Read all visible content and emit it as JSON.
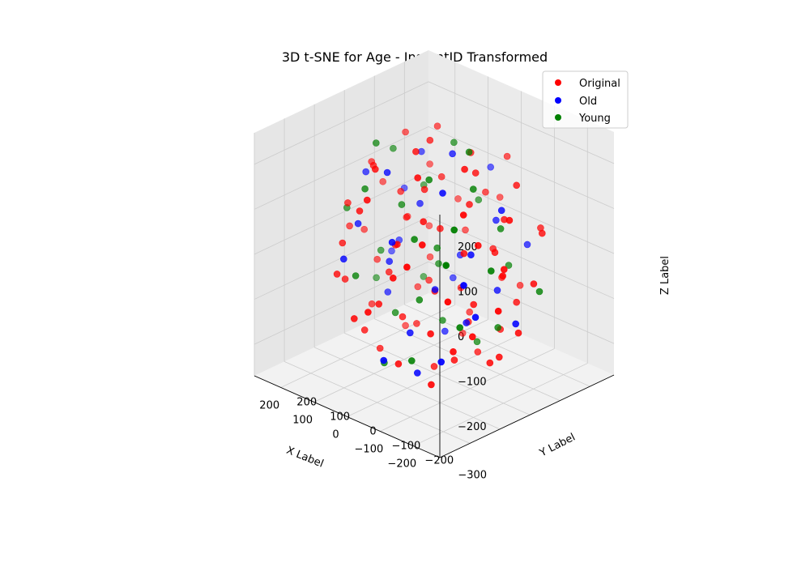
{
  "chart_data": {
    "type": "scatter",
    "projection": "3d",
    "title": "3D t-SNE for Age - InstantID Transformed",
    "xlabel": "X Label",
    "ylabel": "Y Label",
    "zlabel": "Z Label",
    "xlim": [
      -280,
      280
    ],
    "ylim": [
      -300,
      280
    ],
    "zlim": [
      -270,
      270
    ],
    "x_ticks": [
      200,
      100,
      0,
      -100,
      -200
    ],
    "x_tick_labels": [
      "200",
      "100",
      "0",
      "−100",
      "−200"
    ],
    "y_ticks": [
      200,
      100,
      0,
      -100,
      -200,
      -300
    ],
    "y_tick_labels": [
      "200",
      "100",
      "0",
      "−100",
      "−200",
      "−300"
    ],
    "z_ticks": [
      -200,
      -100,
      0,
      100,
      200
    ],
    "z_tick_labels": [
      "−200",
      "−100",
      "0",
      "100",
      "200"
    ],
    "grid": true,
    "legend": {
      "position": "top-right",
      "entries": [
        "Original",
        "Old",
        "Young"
      ]
    },
    "series": [
      {
        "name": "Original",
        "color": "#ff0000",
        "points": [
          [
            180,
            -20,
            150
          ],
          [
            150,
            60,
            200
          ],
          [
            120,
            -80,
            180
          ],
          [
            90,
            100,
            220
          ],
          [
            60,
            -140,
            210
          ],
          [
            40,
            20,
            230
          ],
          [
            10,
            -60,
            240
          ],
          [
            -20,
            90,
            200
          ],
          [
            -50,
            -120,
            220
          ],
          [
            -80,
            40,
            190
          ],
          [
            -110,
            -30,
            230
          ],
          [
            -140,
            110,
            160
          ],
          [
            -170,
            -100,
            170
          ],
          [
            -200,
            20,
            130
          ],
          [
            200,
            40,
            80
          ],
          [
            170,
            -110,
            90
          ],
          [
            140,
            130,
            110
          ],
          [
            110,
            0,
            100
          ],
          [
            80,
            -170,
            120
          ],
          [
            50,
            70,
            130
          ],
          [
            20,
            -20,
            140
          ],
          [
            -10,
            150,
            90
          ],
          [
            -40,
            -90,
            110
          ],
          [
            -70,
            30,
            120
          ],
          [
            -100,
            -160,
            100
          ],
          [
            -130,
            80,
            90
          ],
          [
            -160,
            -40,
            80
          ],
          [
            -190,
            140,
            60
          ],
          [
            -220,
            -20,
            40
          ],
          [
            210,
            -60,
            10
          ],
          [
            180,
            100,
            -10
          ],
          [
            150,
            -150,
            20
          ],
          [
            120,
            30,
            30
          ],
          [
            90,
            -40,
            0
          ],
          [
            60,
            160,
            -20
          ],
          [
            30,
            -100,
            40
          ],
          [
            0,
            10,
            50
          ],
          [
            -30,
            -180,
            10
          ],
          [
            -60,
            120,
            -10
          ],
          [
            -90,
            -10,
            30
          ],
          [
            -120,
            60,
            20
          ],
          [
            -150,
            -130,
            -20
          ],
          [
            -180,
            20,
            0
          ],
          [
            -210,
            90,
            -30
          ],
          [
            190,
            10,
            -80
          ],
          [
            160,
            -130,
            -70
          ],
          [
            130,
            120,
            -90
          ],
          [
            100,
            -50,
            -60
          ],
          [
            70,
            50,
            -100
          ],
          [
            40,
            -150,
            -80
          ],
          [
            10,
            90,
            -110
          ],
          [
            -20,
            -30,
            -70
          ],
          [
            -50,
            160,
            -90
          ],
          [
            -80,
            -110,
            -120
          ],
          [
            -110,
            0,
            -80
          ],
          [
            -140,
            110,
            -100
          ],
          [
            -170,
            -70,
            -110
          ],
          [
            -200,
            50,
            -130
          ],
          [
            170,
            -30,
            -160
          ],
          [
            140,
            90,
            -150
          ],
          [
            110,
            -120,
            -170
          ],
          [
            80,
            20,
            -190
          ],
          [
            50,
            -60,
            -140
          ],
          [
            20,
            130,
            -180
          ],
          [
            -10,
            -140,
            -200
          ],
          [
            -40,
            60,
            -160
          ],
          [
            -70,
            -20,
            -210
          ],
          [
            -100,
            100,
            -170
          ],
          [
            -130,
            -90,
            -150
          ],
          [
            -160,
            30,
            -190
          ],
          [
            150,
            60,
            -230
          ],
          [
            100,
            -80,
            -220
          ],
          [
            50,
            140,
            -240
          ],
          [
            0,
            -10,
            -250
          ],
          [
            -50,
            80,
            -230
          ],
          [
            -100,
            -130,
            -220
          ],
          [
            -150,
            10,
            -200
          ],
          [
            30,
            -200,
            170
          ],
          [
            -30,
            200,
            160
          ],
          [
            220,
            0,
            -20
          ],
          [
            -230,
            -50,
            -40
          ],
          [
            100,
            180,
            30
          ],
          [
            -90,
            -200,
            60
          ],
          [
            60,
            -210,
            -100
          ],
          [
            -60,
            210,
            -120
          ],
          [
            130,
            -190,
            -30
          ],
          [
            -140,
            190,
            40
          ],
          [
            0,
            -230,
            -60
          ],
          [
            10,
            220,
            50
          ],
          [
            160,
            150,
            -40
          ]
        ]
      },
      {
        "name": "Old",
        "color": "#0000ff",
        "points": [
          [
            170,
            -50,
            140
          ],
          [
            120,
            80,
            160
          ],
          [
            60,
            -100,
            190
          ],
          [
            -10,
            40,
            210
          ],
          [
            -80,
            -70,
            180
          ],
          [
            -140,
            60,
            120
          ],
          [
            190,
            100,
            50
          ],
          [
            130,
            -120,
            60
          ],
          [
            70,
            20,
            80
          ],
          [
            0,
            -150,
            70
          ],
          [
            -60,
            130,
            50
          ],
          [
            -120,
            -20,
            40
          ],
          [
            -180,
            -110,
            20
          ],
          [
            160,
            50,
            -40
          ],
          [
            90,
            -60,
            -30
          ],
          [
            30,
            110,
            -50
          ],
          [
            -30,
            -40,
            -60
          ],
          [
            -100,
            90,
            -80
          ],
          [
            -170,
            -60,
            -70
          ],
          [
            140,
            -10,
            -130
          ],
          [
            70,
            130,
            -120
          ],
          [
            0,
            -90,
            -150
          ],
          [
            -70,
            20,
            -140
          ],
          [
            -130,
            -130,
            -160
          ],
          [
            40,
            70,
            -210
          ],
          [
            -40,
            -110,
            -220
          ],
          [
            210,
            80,
            -90
          ],
          [
            -210,
            30,
            -100
          ],
          [
            110,
            -190,
            10
          ],
          [
            -100,
            190,
            -10
          ],
          [
            20,
            200,
            120
          ],
          [
            -20,
            -200,
            -170
          ]
        ]
      },
      {
        "name": "Young",
        "color": "#008000",
        "points": [
          [
            160,
            30,
            170
          ],
          [
            100,
            -130,
            150
          ],
          [
            40,
            100,
            200
          ],
          [
            -30,
            -60,
            190
          ],
          [
            -100,
            10,
            170
          ],
          [
            -160,
            -120,
            140
          ],
          [
            200,
            -80,
            60
          ],
          [
            140,
            110,
            70
          ],
          [
            80,
            -30,
            90
          ],
          [
            20,
            160,
            60
          ],
          [
            -40,
            -120,
            80
          ],
          [
            -110,
            90,
            60
          ],
          [
            -190,
            -30,
            30
          ],
          [
            170,
            0,
            -50
          ],
          [
            110,
            -150,
            -40
          ],
          [
            50,
            60,
            -60
          ],
          [
            -10,
            -70,
            -80
          ],
          [
            -80,
            150,
            -50
          ],
          [
            -150,
            -90,
            -90
          ],
          [
            150,
            120,
            -140
          ],
          [
            90,
            -40,
            -150
          ],
          [
            20,
            40,
            -170
          ],
          [
            -50,
            -140,
            -180
          ],
          [
            -120,
            70,
            -150
          ],
          [
            60,
            -110,
            -230
          ],
          [
            -30,
            100,
            -220
          ],
          [
            -200,
            120,
            -60
          ],
          [
            220,
            40,
            -140
          ],
          [
            0,
            0,
            10
          ],
          [
            130,
            -60,
            220
          ],
          [
            -60,
            40,
            230
          ],
          [
            -190,
            -180,
            90
          ]
        ]
      }
    ]
  }
}
